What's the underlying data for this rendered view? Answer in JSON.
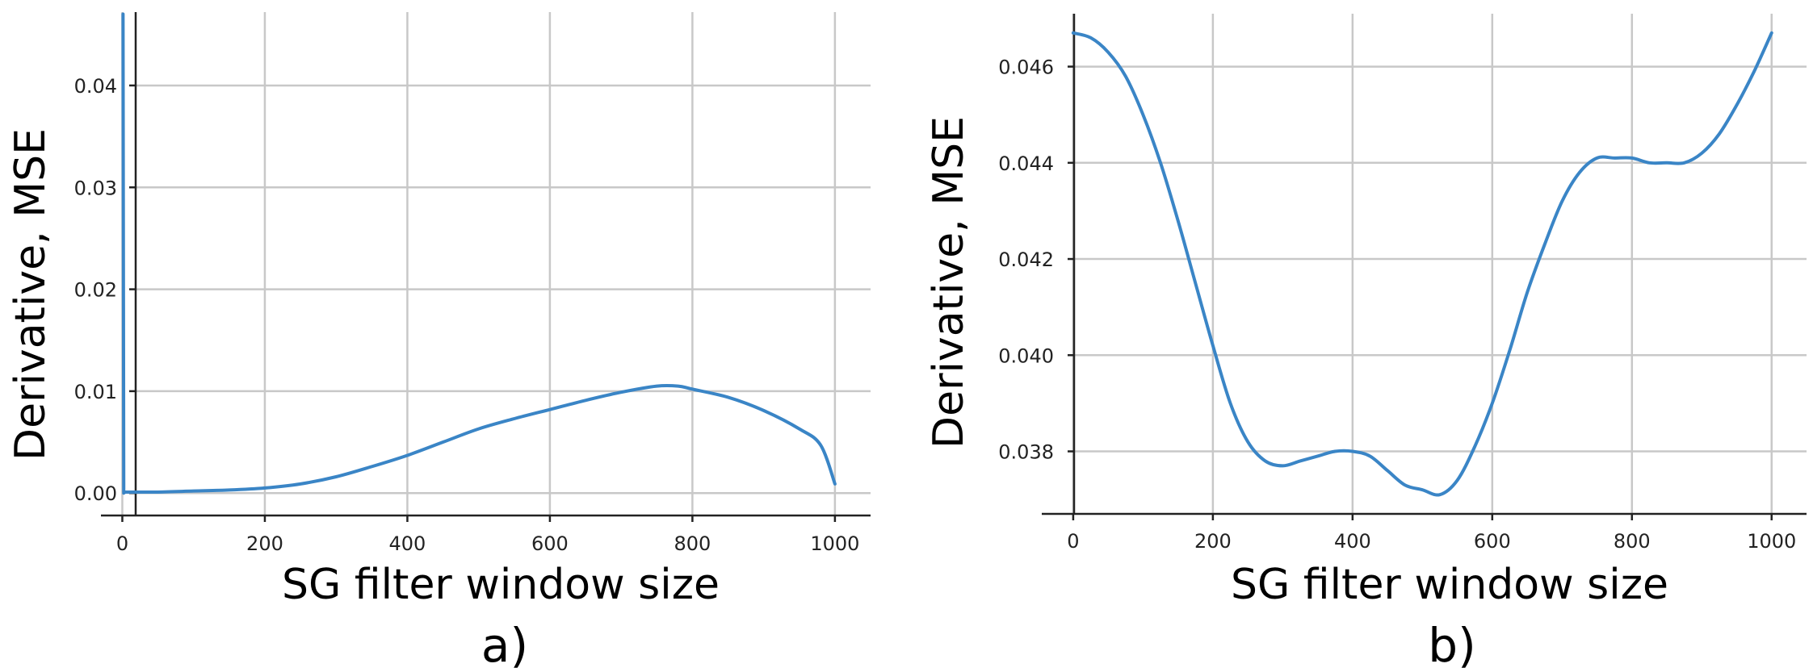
{
  "chart_data": [
    {
      "type": "line",
      "panel_label": "a)",
      "xlabel": "SG filter window size",
      "ylabel": "Derivative, MSE",
      "xlim": [
        -30,
        1050
      ],
      "ylim": [
        -0.0022,
        0.0472
      ],
      "xticks": [
        0,
        200,
        400,
        600,
        800,
        1000
      ],
      "yticks": [
        0.0,
        0.01,
        0.02,
        0.03,
        0.04
      ],
      "xtick_labels": [
        "0",
        "200",
        "400",
        "600",
        "800",
        "1000"
      ],
      "ytick_labels": [
        "0.00",
        "0.01",
        "0.02",
        "0.03",
        "0.04"
      ],
      "grid": true,
      "series": [
        {
          "color": "#3a85c6",
          "x": [
            1,
            2,
            4,
            10,
            50,
            100,
            150,
            200,
            250,
            300,
            350,
            400,
            450,
            500,
            550,
            600,
            650,
            700,
            750,
            780,
            800,
            850,
            900,
            950,
            980,
            1000
          ],
          "y": [
            0.047,
            0.0,
            0.0001,
            0.0001,
            0.0001,
            0.0002,
            0.0003,
            0.0005,
            0.0009,
            0.0016,
            0.0026,
            0.0037,
            0.005,
            0.0063,
            0.0073,
            0.0082,
            0.0091,
            0.0099,
            0.0105,
            0.0105,
            0.0102,
            0.0094,
            0.0081,
            0.0063,
            0.0047,
            0.0009
          ]
        }
      ]
    },
    {
      "type": "line",
      "panel_label": "b)",
      "xlabel": "SG filter window size",
      "ylabel": "Derivative, MSE",
      "xlim": [
        -45,
        1050
      ],
      "ylim": [
        0.0367,
        0.0471
      ],
      "xticks": [
        0,
        200,
        400,
        600,
        800,
        1000
      ],
      "yticks": [
        0.038,
        0.04,
        0.042,
        0.044,
        0.046
      ],
      "xtick_labels": [
        "0",
        "200",
        "400",
        "600",
        "800",
        "1000"
      ],
      "ytick_labels": [
        "0.038",
        "0.040",
        "0.042",
        "0.044",
        "0.046"
      ],
      "grid": true,
      "series": [
        {
          "color": "#3a85c6",
          "x": [
            0,
            25,
            50,
            75,
            100,
            125,
            150,
            175,
            200,
            225,
            250,
            275,
            300,
            325,
            350,
            375,
            400,
            425,
            450,
            475,
            500,
            525,
            550,
            575,
            600,
            625,
            650,
            675,
            700,
            725,
            750,
            775,
            800,
            825,
            850,
            875,
            900,
            925,
            950,
            975,
            1000
          ],
          "y": [
            0.0467,
            0.0466,
            0.0463,
            0.0458,
            0.045,
            0.044,
            0.0428,
            0.0415,
            0.0402,
            0.039,
            0.0382,
            0.0378,
            0.0377,
            0.0378,
            0.0379,
            0.038,
            0.038,
            0.0379,
            0.0376,
            0.0373,
            0.0372,
            0.0371,
            0.0374,
            0.0381,
            0.039,
            0.0401,
            0.0413,
            0.0423,
            0.0432,
            0.0438,
            0.0441,
            0.0441,
            0.0441,
            0.044,
            0.044,
            0.044,
            0.0442,
            0.0446,
            0.0452,
            0.0459,
            0.0467
          ]
        }
      ]
    }
  ]
}
